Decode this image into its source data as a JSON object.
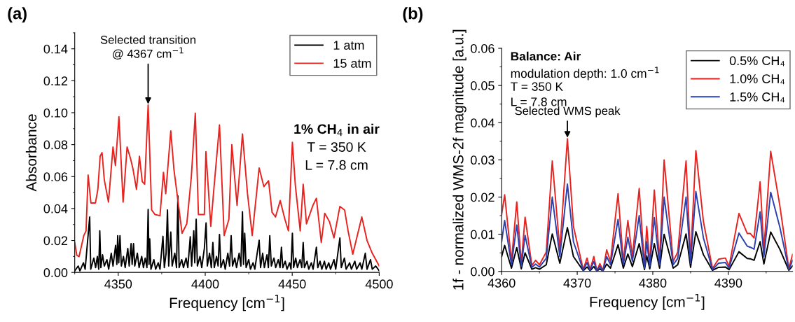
{
  "chart_data": [
    {
      "type": "line",
      "title": "(a)",
      "xlabel": "Frequency [cm$^{−1}$]",
      "ylabel": "Absorbance",
      "xlim": [
        4325,
        4500
      ],
      "xticks": [
        4350,
        4400,
        4450,
        4500
      ],
      "ylim": [
        0,
        0.15
      ],
      "yticks": [
        {
          "value": 0,
          "label": "0.00"
        },
        {
          "value": 0.02,
          "label": "0.02"
        },
        {
          "value": 0.04,
          "label": "0.04"
        },
        {
          "value": 0.06,
          "label": "0.06"
        },
        {
          "value": 0.08,
          "label": "0.08"
        },
        {
          "value": 0.1,
          "label": "0.10"
        },
        {
          "value": 0.12,
          "label": "0.12"
        },
        {
          "value": 0.14,
          "label": "0.14"
        }
      ],
      "legend": "top right",
      "grid": false,
      "annotations": [
        {
          "text": "Selected transition\n@ 4367 cm$^{−1}$",
          "x": 4367.2,
          "y": 0.1048
        },
        "1% CH$_{4}$ in air",
        "T = 350 K",
        "L = 7.8 cm"
      ],
      "series": [
        {
          "name": "1 atm",
          "color": "#000000",
          "x": [
            4325,
            4327,
            4328,
            4330,
            4331,
            4333.6,
            4334.2,
            4336,
            4337,
            4338,
            4338.8,
            4339.4,
            4340,
            4341,
            4342,
            4343.5,
            4344.5,
            4346,
            4347,
            4348.5,
            4349.2,
            4349.7,
            4350.3,
            4351,
            4351.8,
            4353,
            4354,
            4355.5,
            4356.3,
            4357.4,
            4358,
            4358.8,
            4359.5,
            4361,
            4362,
            4363.5,
            4364.5,
            4365.5,
            4366.5,
            4367.2,
            4367.7,
            4368.1,
            4368.8,
            4370.5,
            4371.5,
            4373,
            4374,
            4375.7,
            4376.5,
            4377.5,
            4378.3,
            4379,
            4380.2,
            4381,
            4382.5,
            4383.5,
            4384.3,
            4385,
            4386.5,
            4387.5,
            4389,
            4390,
            4391.4,
            4392.2,
            4393.4,
            4394,
            4394.8,
            4395.5,
            4397,
            4398,
            4399.5,
            4400.5,
            4401.2,
            4402.5,
            4403.5,
            4404.4,
            4405.2,
            4406.5,
            4407.4,
            4408.2,
            4409,
            4410.5,
            4411.5,
            4413,
            4414,
            4414.9,
            4415.7,
            4417,
            4418,
            4419.5,
            4420.5,
            4421.4,
            4422,
            4422.7,
            4423.5,
            4425,
            4426,
            4427.5,
            4428.5,
            4430,
            4431,
            4431.8,
            4433,
            4434,
            4435.5,
            4436.3,
            4437.1,
            4438,
            4439.5,
            4440.5,
            4442,
            4443,
            4443.8,
            4444.6,
            4446,
            4447,
            4448.5,
            4449.3,
            4450.1,
            4450.8,
            4452,
            4453,
            4454.5,
            4455.5,
            4456.3,
            4457,
            4458.5,
            4459.5,
            4461,
            4462,
            4463.9,
            4464.7,
            4466,
            4467,
            4468.5,
            4469.5,
            4471,
            4472,
            4474,
            4475,
            4477.4,
            4478.2,
            4480,
            4481,
            4483,
            4484,
            4486,
            4487,
            4489,
            4490,
            4492,
            4493,
            4495,
            4496,
            4498,
            4500
          ],
          "values": [
            0.001,
            0.004,
            0.001,
            0.006,
            0.002,
            0.0347,
            0.002,
            0.009,
            0.003,
            0.01,
            0.002,
            0.026,
            0.003,
            0.011,
            0.004,
            0.008,
            0.002,
            0.012,
            0.004,
            0.017,
            0.005,
            0.023,
            0.006,
            0.023,
            0.004,
            0.01,
            0.003,
            0.015,
            0.004,
            0.018,
            0.005,
            0.018,
            0.004,
            0.012,
            0.003,
            0.01,
            0.003,
            0.009,
            0.003,
            0.0394,
            0.005,
            0.021,
            0.002,
            0.008,
            0.002,
            0.006,
            0.002,
            0.0226,
            0.003,
            0.012,
            0.0391,
            0.004,
            0.0253,
            0.004,
            0.012,
            0.003,
            0.0479,
            0.003,
            0.008,
            0.003,
            0.009,
            0.003,
            0.0223,
            0.004,
            0.026,
            0.006,
            0.0333,
            0.004,
            0.01,
            0.003,
            0.015,
            0.031,
            0.004,
            0.012,
            0.003,
            0.0187,
            0.003,
            0.01,
            0.004,
            0.0238,
            0.003,
            0.008,
            0.002,
            0.012,
            0.004,
            0.023,
            0.004,
            0.009,
            0.003,
            0.012,
            0.004,
            0.038,
            0.005,
            0.0245,
            0.003,
            0.008,
            0.002,
            0.006,
            0.002,
            0.013,
            0.0201,
            0.003,
            0.012,
            0.003,
            0.011,
            0.003,
            0.023,
            0.004,
            0.009,
            0.003,
            0.008,
            0.003,
            0.0158,
            0.003,
            0.007,
            0.002,
            0.006,
            0.002,
            0.0245,
            0.003,
            0.009,
            0.003,
            0.008,
            0.003,
            0.0187,
            0.003,
            0.007,
            0.002,
            0.006,
            0.002,
            0.0158,
            0.003,
            0.007,
            0.002,
            0.007,
            0.002,
            0.006,
            0.002,
            0.008,
            0.002,
            0.0216,
            0.003,
            0.009,
            0.002,
            0.006,
            0.002,
            0.007,
            0.002,
            0.006,
            0.002,
            0.012,
            0.002,
            0.008,
            0.002,
            0.004,
            0.001
          ]
        },
        {
          "name": "15 atm",
          "color": "#e8231f",
          "x": [
            4325,
            4326.2,
            4327.5,
            4330.2,
            4331.5,
            4332.7,
            4334.3,
            4336.9,
            4338.3,
            4339.6,
            4340.7,
            4342,
            4344.4,
            4347,
            4348.4,
            4350.4,
            4352.8,
            4355.1,
            4357.1,
            4358.5,
            4360.5,
            4362.2,
            4363.8,
            4365.2,
            4367.2,
            4369.2,
            4371.2,
            4374,
            4376,
            4377.3,
            4380.2,
            4382,
            4386.7,
            4389.4,
            4392,
            4394.3,
            4396.1,
            4399.5,
            4400.4,
            4403.2,
            4404.8,
            4408.2,
            4410.9,
            4413.6,
            4415.3,
            4418.3,
            4421.4,
            4424.3,
            4427,
            4431,
            4433.7,
            4436.4,
            4438.4,
            4440.4,
            4443.1,
            4445.8,
            4447.8,
            4450.1,
            4451.8,
            4454.6,
            4456.3,
            4458.2,
            4461.9,
            4463.9,
            4466.7,
            4468.7,
            4471.4,
            4474,
            4477.4,
            4480.1,
            4482.1,
            4484.8,
            4490,
            4493,
            4496,
            4500
          ],
          "values": [
            0.0187,
            0.0107,
            0.0099,
            0.023,
            0.026,
            0.061,
            0.0435,
            0.0435,
            0.052,
            0.0727,
            0.075,
            0.058,
            0.044,
            0.0785,
            0.0669,
            0.0975,
            0.044,
            0.0785,
            0.0712,
            0.0647,
            0.052,
            0.0727,
            0.0569,
            0.0552,
            0.1048,
            0.0391,
            0.0362,
            0.0355,
            0.0627,
            0.0493,
            0.0886,
            0.0647,
            0.0245,
            0.0304,
            0.0596,
            0.0997,
            0.0362,
            0.0362,
            0.0756,
            0.0289,
            0.0501,
            0.0923,
            0.0231,
            0.0333,
            0.08,
            0.042,
            0.0867,
            0.0493,
            0.0231,
            0.0654,
            0.0537,
            0.0574,
            0.0377,
            0.0347,
            0.045,
            0.0333,
            0.026,
            0.0815,
            0.0545,
            0.026,
            0.0552,
            0.0304,
            0.042,
            0.0464,
            0.0187,
            0.037,
            0.0318,
            0.0216,
            0.0413,
            0.0391,
            0.026,
            0.0114,
            0.0347,
            0.02,
            0.012,
            0.004
          ]
        }
      ]
    },
    {
      "type": "line",
      "title": "(b)",
      "xlabel": "Frequency [cm$^{−1}$]",
      "ylabel": "1f - normalized WMS-2f magnitude [a.u.]",
      "xlim": [
        4360,
        4398.5
      ],
      "xticks": [
        4360,
        4370,
        4380,
        4390
      ],
      "ylim": [
        0,
        0.06
      ],
      "yticks": [
        {
          "value": 0,
          "label": "0.00"
        },
        {
          "value": 0.01,
          "label": "0.01"
        },
        {
          "value": 0.02,
          "label": "0.02"
        },
        {
          "value": 0.03,
          "label": "0.03"
        },
        {
          "value": 0.04,
          "label": "0.04"
        },
        {
          "value": 0.05,
          "label": "0.05"
        },
        {
          "value": 0.06,
          "label": "0.06"
        }
      ],
      "legend": "top right",
      "grid": false,
      "annotations": [
        {
          "text": "Selected WMS peak",
          "x": 4368.7,
          "y": 0.0357
        },
        "Balance: Air",
        "modulation depth: 1.0 cm$^{−1}$",
        "T = 350 K",
        "L = 7.8 cm"
      ],
      "x": [
        4360,
        4360.4,
        4361.3,
        4362,
        4362.6,
        4363.1,
        4364,
        4364.5,
        4365,
        4365.9,
        4366.7,
        4367.7,
        4368.7,
        4369.5,
        4370.8,
        4371.3,
        4371.7,
        4372.2,
        4372.6,
        4373,
        4373.4,
        4373.9,
        4374.4,
        4375.4,
        4376.1,
        4376.7,
        4377.3,
        4378.2,
        4378.9,
        4379.2,
        4379.6,
        4380.2,
        4380.9,
        4381.5,
        4382.7,
        4383.3,
        4384.4,
        4385,
        4385.7,
        4386.7,
        4387.9,
        4388.7,
        4389.6,
        4390.1,
        4391.4,
        4392.5,
        4392.9,
        4393.4,
        4394.2,
        4394.7,
        4395.6,
        4396.8,
        4398,
        4398.5
      ],
      "series": [
        {
          "name": "0.5% CH₄",
          "color": "#000000",
          "values": [
            0.004,
            0.007,
            0.0009,
            0.0064,
            0.0007,
            0.005,
            0.0006,
            0.001,
            0.0006,
            0.0018,
            0.0101,
            0.0022,
            0.0118,
            0.004,
            0.0002,
            0.0012,
            0.0002,
            0.0013,
            0.0001,
            0.0007,
            0.0001,
            0.002,
            0.0009,
            0.0072,
            0.0009,
            0.0047,
            0.0013,
            0.0075,
            0.0005,
            0.0042,
            0.0007,
            0.0075,
            0.0009,
            0.01,
            0.0009,
            0.0018,
            0.0101,
            0.0011,
            0.0107,
            0.0045,
            0.0003,
            0.0011,
            0.0012,
            0.0005,
            0.0053,
            0.0035,
            0.0034,
            0.003,
            0.008,
            0.002,
            0.0106,
            0.006,
            0.0003,
            0.0015
          ]
        },
        {
          "name": "1.0% CH₄",
          "color": "#e8231f",
          "values": [
            0.0153,
            0.0206,
            0.0027,
            0.0187,
            0.0021,
            0.0146,
            0.0016,
            0.003,
            0.0018,
            0.0052,
            0.0297,
            0.0058,
            0.0357,
            0.0121,
            0.0005,
            0.0036,
            0.0005,
            0.004,
            0.0002,
            0.0021,
            0.0002,
            0.0058,
            0.0027,
            0.0209,
            0.0027,
            0.0137,
            0.004,
            0.0223,
            0.0014,
            0.0121,
            0.0021,
            0.0219,
            0.0027,
            0.03,
            0.0027,
            0.0052,
            0.0297,
            0.0033,
            0.0325,
            0.0134,
            0.0008,
            0.0033,
            0.0036,
            0.0014,
            0.0156,
            0.0102,
            0.0102,
            0.009,
            0.0241,
            0.0058,
            0.0323,
            0.0178,
            0.0008,
            0.0046
          ]
        },
        {
          "name": "1.5% CH₄",
          "color": "#2a3fb0",
          "values": [
            0.008,
            0.0137,
            0.0018,
            0.0125,
            0.0014,
            0.0097,
            0.0011,
            0.002,
            0.0012,
            0.0035,
            0.02,
            0.004,
            0.0235,
            0.008,
            0.0003,
            0.0024,
            0.0003,
            0.0027,
            0.0001,
            0.0014,
            0.0001,
            0.004,
            0.0018,
            0.014,
            0.0018,
            0.0092,
            0.0027,
            0.015,
            0.0009,
            0.008,
            0.0014,
            0.0145,
            0.0018,
            0.02,
            0.0018,
            0.0035,
            0.02,
            0.0022,
            0.0215,
            0.009,
            0.0005,
            0.0022,
            0.0024,
            0.0009,
            0.0103,
            0.0068,
            0.0065,
            0.006,
            0.016,
            0.004,
            0.0213,
            0.012,
            0.0005,
            0.003
          ]
        }
      ]
    }
  ]
}
